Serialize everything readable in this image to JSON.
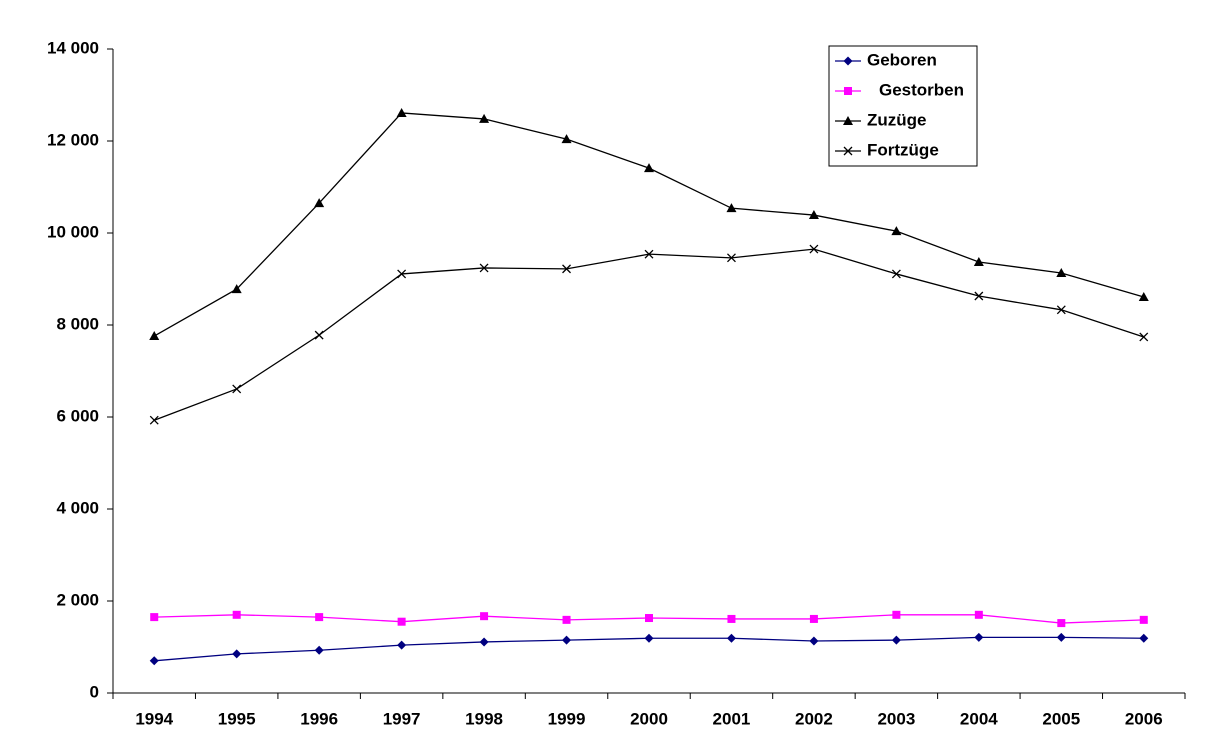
{
  "chart_data": {
    "type": "line",
    "categories": [
      "1994",
      "1995",
      "1996",
      "1997",
      "1998",
      "1999",
      "2000",
      "2001",
      "2002",
      "2003",
      "2004",
      "2005",
      "2006"
    ],
    "series": [
      {
        "name": "Geboren",
        "color": "#000080",
        "marker": "diamond",
        "values": [
          700,
          850,
          930,
          1040,
          1110,
          1150,
          1190,
          1190,
          1130,
          1150,
          1210,
          1210,
          1190
        ]
      },
      {
        "name": "Gestorben",
        "color": "#ff00ff",
        "marker": "square",
        "values": [
          1650,
          1700,
          1650,
          1550,
          1670,
          1590,
          1630,
          1610,
          1610,
          1700,
          1700,
          1520,
          1590
        ]
      },
      {
        "name": "Zuzüge",
        "color": "#000000",
        "marker": "triangle",
        "values": [
          7760,
          8780,
          10650,
          12610,
          12480,
          12040,
          11410,
          10540,
          10390,
          10040,
          9370,
          9130,
          8610
        ]
      },
      {
        "name": "Fortzüge",
        "color": "#000000",
        "marker": "x",
        "values": [
          5930,
          6610,
          7780,
          9110,
          9240,
          9220,
          9540,
          9460,
          9650,
          9110,
          8630,
          8330,
          7740
        ]
      }
    ],
    "ylim": [
      0,
      14000
    ],
    "yticks": [
      0,
      {
        "value": 2000,
        "label": "2 000"
      },
      {
        "value": 4000,
        "label": "4 000"
      },
      {
        "value": 6000,
        "label": "6 000"
      },
      {
        "value": 8000,
        "label": "8 000"
      },
      {
        "value": 10000,
        "label": "10 000"
      },
      {
        "value": 12000,
        "label": "12 000"
      },
      {
        "value": 14000,
        "label": "14 000"
      }
    ],
    "grid": false,
    "legend": "top-right"
  }
}
